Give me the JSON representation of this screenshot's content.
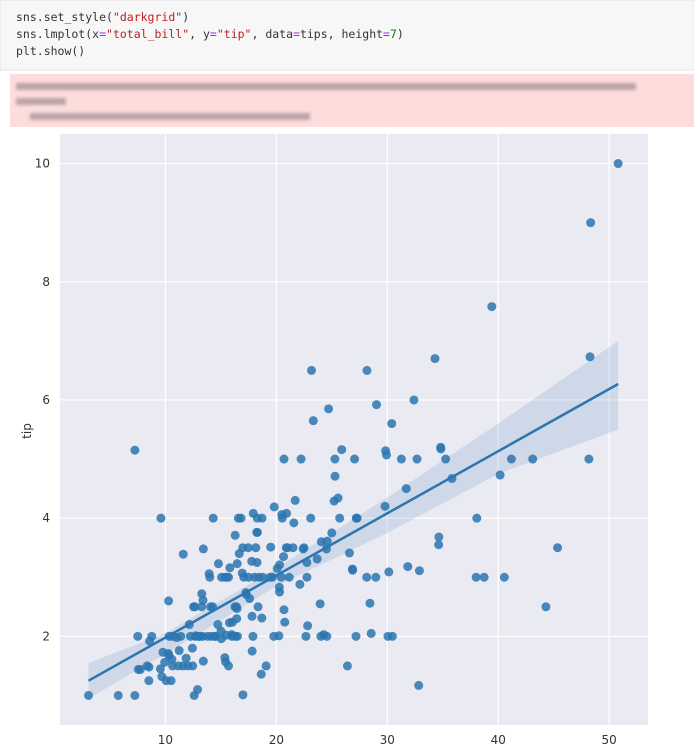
{
  "code": {
    "lines": [
      [
        "sns.set_style(",
        "\"darkgrid\"",
        ")"
      ],
      [
        "sns.lmplot(x",
        "=",
        "\"total_bill\"",
        ", y",
        "=",
        "\"tip\"",
        ", data",
        "=",
        "tips, height",
        "=",
        "7",
        ")"
      ],
      [
        "plt.show()"
      ]
    ]
  },
  "chart_data": {
    "type": "scatter",
    "ylabel": "tip",
    "color": "#2c75b0",
    "grid": true,
    "xlim": [
      0.5,
      53.5
    ],
    "ylim": [
      0.5,
      10.5
    ],
    "xticks": [
      10,
      20,
      30,
      40,
      50
    ],
    "yticks": [
      2,
      4,
      6,
      8,
      10
    ],
    "x": [
      3.07,
      5.75,
      7.25,
      7.25,
      7.51,
      7.56,
      7.74,
      8.35,
      8.51,
      8.52,
      8.58,
      8.77,
      9.55,
      9.6,
      9.68,
      9.78,
      9.94,
      10.07,
      10.27,
      10.29,
      10.33,
      10.34,
      10.51,
      10.59,
      10.63,
      10.65,
      11.02,
      11.17,
      11.24,
      11.38,
      11.59,
      11.61,
      11.87,
      12.03,
      12.16,
      12.26,
      12.43,
      12.46,
      12.54,
      12.6,
      12.66,
      12.69,
      12.74,
      12.9,
      13,
      13.03,
      13.13,
      13.27,
      13.28,
      13.37,
      13.39,
      13.42,
      13.42,
      13.81,
      13.94,
      14,
      14.07,
      14.15,
      14.26,
      14.31,
      14.48,
      14.52,
      14.73,
      14.78,
      15.01,
      15.04,
      15.06,
      15.36,
      15.38,
      15.42,
      15.48,
      15.53,
      15.69,
      15.69,
      15.77,
      15.81,
      15.98,
      16,
      16.04,
      16.27,
      16.29,
      16.31,
      16.4,
      16.43,
      16.45,
      16.47,
      16.49,
      16.58,
      16.66,
      16.82,
      16.93,
      16.97,
      16.99,
      17.07,
      17.26,
      17.29,
      17.47,
      17.51,
      17.59,
      17.78,
      17.81,
      17.82,
      17.89,
      17.92,
      18.04,
      18.15,
      18.24,
      18.26,
      18.28,
      18.29,
      18.35,
      18.43,
      18.64,
      18.69,
      18.71,
      18.78,
      19.08,
      19.44,
      19.49,
      19.65,
      19.77,
      19.81,
      20.08,
      20.23,
      20.27,
      20.29,
      20.29,
      20.45,
      20.49,
      20.53,
      20.65,
      20.69,
      20.76,
      20.9,
      20.92,
      20.69,
      21.01,
      21.16,
      21.5,
      21.58,
      21.7,
      22.12,
      22.23,
      22.42,
      22.49,
      22.67,
      22.75,
      22.76,
      22.82,
      23.1,
      23.33,
      23.68,
      23.95,
      24.01,
      24.06,
      24.27,
      24.52,
      24.55,
      24.59,
      24.71,
      25,
      25.21,
      25.28,
      25.29,
      25.56,
      25.71,
      25.89,
      26.41,
      26.59,
      26.86,
      26.88,
      27.05,
      27.18,
      27.2,
      27.28,
      28.15,
      28.44,
      28.55,
      28.97,
      29.03,
      29.8,
      29.85,
      29.93,
      30.06,
      30.14,
      30.4,
      30.46,
      31.27,
      31.71,
      31.85,
      32.4,
      32.68,
      32.83,
      32.9,
      34.3,
      34.63,
      34.65,
      34.81,
      34.83,
      35.26,
      35.83,
      38.01,
      38.07,
      38.73,
      39.42,
      40.17,
      40.55,
      41.19,
      43.11,
      44.3,
      45.35,
      48.17,
      48.27,
      48.33,
      50.81,
      28.17,
      23.17
    ],
    "values": [
      1,
      1,
      1,
      5.15,
      2,
      1.44,
      1.44,
      1.5,
      1.25,
      1.48,
      1.92,
      2,
      1.45,
      4,
      1.32,
      1.73,
      1.56,
      1.25,
      1.71,
      2.6,
      1.67,
      2,
      1.25,
      1.61,
      2,
      1.5,
      1.98,
      1.5,
      1.76,
      2,
      1.5,
      3.39,
      1.63,
      1.5,
      2.2,
      2,
      1.8,
      1.5,
      2.5,
      1,
      2.5,
      2,
      2.01,
      1.1,
      2,
      2,
      2,
      2.5,
      2.72,
      2,
      2.61,
      3.48,
      1.58,
      2,
      3.06,
      3,
      2.5,
      2,
      2.5,
      4,
      2,
      2,
      2.2,
      3.23,
      2.09,
      1.96,
      3,
      1.64,
      3,
      1.57,
      2.02,
      3,
      1.5,
      3,
      2.23,
      3.16,
      2.03,
      2,
      2.24,
      2.5,
      3.71,
      2,
      2.5,
      2.3,
      2.47,
      3.23,
      2,
      4,
      3.4,
      4,
      3.07,
      3.5,
      1.01,
      3,
      2.74,
      2.71,
      3.5,
      3,
      2.64,
      3.27,
      2.34,
      1.75,
      2,
      4.08,
      3,
      3.5,
      3.76,
      3.25,
      4,
      3.76,
      2.5,
      3,
      1.36,
      2.31,
      4,
      3,
      1.5,
      3,
      3.51,
      3,
      2,
      4.19,
      3.15,
      2.01,
      2.83,
      2.75,
      3.21,
      3,
      4.06,
      4,
      3.35,
      2.45,
      2.24,
      3.5,
      4.08,
      5,
      3.5,
      3,
      3.5,
      3.92,
      4.3,
      2.88,
      5,
      3.48,
      3.5,
      2,
      3.25,
      3,
      2.18,
      4,
      5.65,
      3.31,
      2.55,
      2,
      3.6,
      2.03,
      3.48,
      2,
      3.61,
      5.85,
      3.75,
      4.29,
      5,
      4.71,
      4.34,
      4,
      5.16,
      1.5,
      3.41,
      3.14,
      3.12,
      5,
      2,
      4,
      4,
      3,
      2.56,
      2.05,
      3,
      5.92,
      4.2,
      5.14,
      5.07,
      2,
      3.09,
      5.6,
      2,
      5,
      4.5,
      3.18,
      6,
      5,
      1.17,
      3.11,
      6.7,
      3.55,
      3.68,
      5.2,
      5.17,
      5,
      4.67,
      3,
      4,
      3,
      7.58,
      4.73,
      3,
      5,
      5,
      2.5,
      3.5,
      5,
      6.73,
      9,
      10,
      6.5,
      6.5
    ],
    "regression": {
      "x": [
        3.07,
        50.81
      ],
      "y": [
        1.25,
        6.27
      ]
    },
    "ci": {
      "x": [
        3.07,
        10,
        20,
        30,
        40,
        50.81
      ],
      "upper": [
        1.55,
        2.05,
        3.15,
        4.35,
        5.6,
        7.0
      ],
      "lower": [
        0.95,
        1.7,
        2.85,
        3.75,
        4.75,
        5.5
      ]
    }
  }
}
